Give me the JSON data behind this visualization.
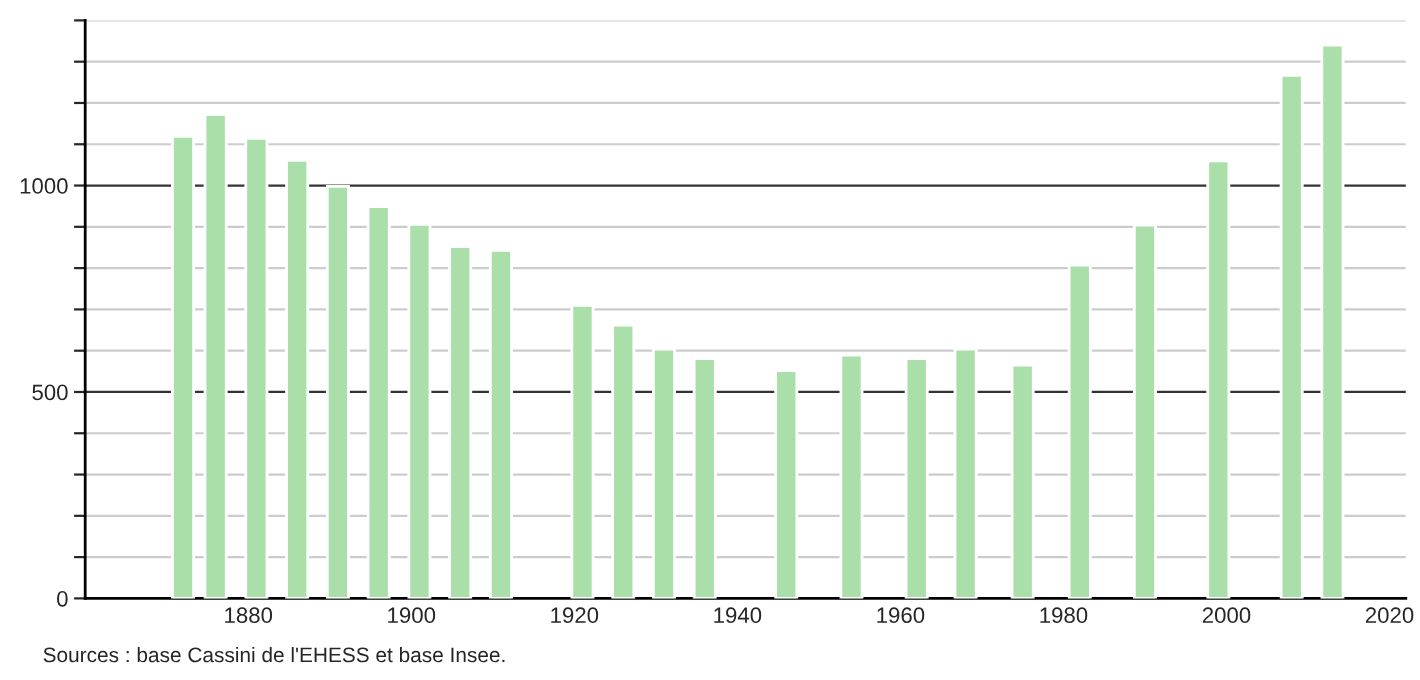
{
  "chart_data": {
    "type": "bar",
    "x": [
      1872,
      1876,
      1881,
      1886,
      1891,
      1896,
      1901,
      1906,
      1911,
      1921,
      1926,
      1931,
      1936,
      1946,
      1954,
      1962,
      1968,
      1975,
      1982,
      1990,
      1999,
      2008,
      2013
    ],
    "values": [
      1119,
      1172,
      1114,
      1061,
      998,
      949,
      906,
      852,
      843,
      710,
      662,
      604,
      581,
      552,
      589,
      581,
      604,
      565,
      807,
      904,
      1060,
      1267,
      1340
    ],
    "color": "#aadfaa",
    "xlim": [
      1860,
      2022
    ],
    "xticks": [
      1880,
      1900,
      1920,
      1940,
      1960,
      1980,
      2000,
      2020
    ],
    "ylim": [
      0,
      1400
    ],
    "yticks": [
      0,
      {
        "value": 100,
        "label": null
      },
      {
        "value": 200,
        "label": null
      },
      {
        "value": 300,
        "label": null
      },
      {
        "value": 400,
        "label": null
      },
      500,
      {
        "value": 600,
        "label": null
      },
      {
        "value": 700,
        "label": null
      },
      {
        "value": 800,
        "label": null
      },
      {
        "value": 900,
        "label": null
      },
      1000,
      {
        "value": 1100,
        "label": null
      },
      {
        "value": 1200,
        "label": null
      },
      {
        "value": 1300,
        "label": null
      },
      {
        "value": 1400,
        "label": null
      }
    ],
    "grid": "y",
    "annotations": [
      "Sources : base Cassini de l'EHESS et base Insee."
    ]
  }
}
